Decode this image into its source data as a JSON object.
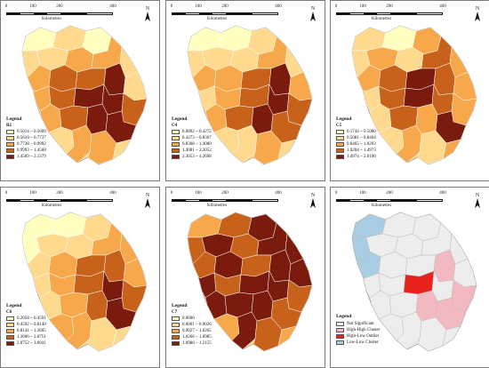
{
  "common": {
    "scale_ticks": [
      "0",
      "100",
      "200",
      "400"
    ],
    "scale_unit": "Kilometres",
    "north_label": "N",
    "legend_title": "Legend"
  },
  "colors": {
    "c1": "#ffffc0",
    "c2": "#fed98e",
    "c3": "#f6a84b",
    "c4": "#c8611a",
    "c5": "#7a1b0e",
    "boundary": "#ffffff",
    "ns": "#ededed",
    "hh": "#f2b9c0",
    "hl": "#e8221c",
    "ll": "#a9cde3"
  },
  "panels": [
    {
      "id": "B2",
      "variable": "B2",
      "classes": [
        "0.5014 ~ 0.5609",
        "0.5610 ~ 0.7737",
        "0.7738 ~ 0.9992",
        "0.9993 ~ 1.4568",
        "1.4569 ~ 2.1379"
      ]
    },
    {
      "id": "C4",
      "variable": "C4",
      "classes": [
        "0.0892 ~ 0.4272",
        "0.4273 ~ 0.8307",
        "0.8308 ~ 1.4080",
        "1.4081 ~ 2.3052",
        "2.3053 ~ 4.3698"
      ]
    },
    {
      "id": "C5",
      "variable": "C5",
      "classes": [
        "0.1744 ~ 0.5080",
        "0.5081 ~ 0.8464",
        "0.8465 ~ 1.0203",
        "1.0204 ~ 1.4973",
        "1.4974 ~ 2.0100"
      ]
    },
    {
      "id": "C6",
      "variable": "C6",
      "classes": [
        "0.2058 ~ 0.4591",
        "0.4592 ~ 0.8140",
        "0.8141 ~ 1.3605",
        "1.3606 ~ 2.0751",
        "2.0752 ~ 3.0941"
      ]
    },
    {
      "id": "C7",
      "variable": "C7",
      "classes": [
        "0.0000",
        "0.0001 ~ 0.9026",
        "0.9027 ~ 1.0265",
        "1.0266 ~ 1.0985",
        "1.0986 ~ 1.2155"
      ]
    },
    {
      "id": "LISA",
      "variable": "",
      "classes": [
        "Not Significant",
        "High-High Cluster",
        "High-Low Outlier",
        "Low-Low Cluster"
      ]
    }
  ]
}
